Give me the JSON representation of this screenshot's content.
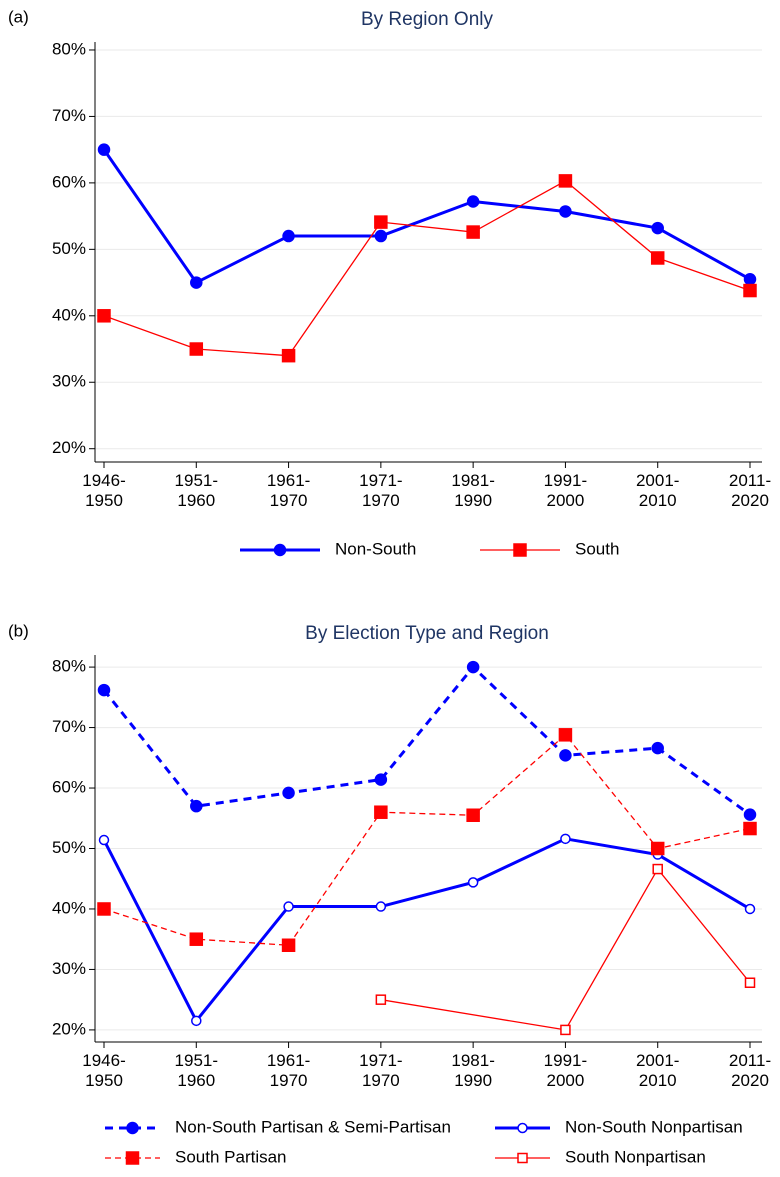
{
  "chart_data": [
    {
      "type": "line",
      "panel_label": "(a)",
      "title": "By Region Only",
      "categories": [
        "1946-\n1950",
        "1951-\n1960",
        "1961-\n1970",
        "1971-\n1970",
        "1981-\n1990",
        "1991-\n2000",
        "2001-\n2010",
        "2011-\n2020"
      ],
      "series": [
        {
          "name": "Non-South",
          "color": "#0000ff",
          "width": 3,
          "dash": false,
          "marker": "circle",
          "filled": true,
          "values": [
            65,
            45,
            52,
            52,
            57.2,
            55.7,
            53.2,
            45.5
          ]
        },
        {
          "name": "South",
          "color": "#ff0000",
          "width": 1.3,
          "dash": false,
          "marker": "square",
          "filled": true,
          "values": [
            40,
            35,
            34,
            54.1,
            52.6,
            60.3,
            48.7,
            43.8
          ]
        }
      ],
      "ylim": [
        18,
        81.2
      ],
      "yticks": [
        {
          "value": 20,
          "label": "20%"
        },
        {
          "value": 30,
          "label": "30%"
        },
        {
          "value": 40,
          "label": "40%"
        },
        {
          "value": 50,
          "label": "50%"
        },
        {
          "value": 60,
          "label": "60%"
        },
        {
          "value": 70,
          "label": "70%"
        },
        {
          "value": 80,
          "label": "80%"
        }
      ],
      "grid": true,
      "legend": "bottom"
    },
    {
      "type": "line",
      "panel_label": "(b)",
      "title": "By Election Type and Region",
      "categories": [
        "1946-\n1950",
        "1951-\n1960",
        "1961-\n1970",
        "1971-\n1970",
        "1981-\n1990",
        "1991-\n2000",
        "2001-\n2010",
        "2011-\n2020"
      ],
      "series": [
        {
          "name": "Non-South Partisan & Semi-Partisan",
          "color": "#0000ff",
          "width": 3,
          "dash": true,
          "marker": "circle",
          "filled": true,
          "values": [
            76.2,
            57,
            59.2,
            61.4,
            80,
            65.4,
            66.6,
            55.6
          ]
        },
        {
          "name": "Non-South Nonpartisan",
          "color": "#0000ff",
          "width": 3,
          "dash": false,
          "marker": "circle",
          "filled": false,
          "values": [
            51.4,
            21.5,
            40.4,
            40.4,
            44.4,
            51.6,
            49,
            40
          ]
        },
        {
          "name": "South Partisan",
          "color": "#ff0000",
          "width": 1.3,
          "dash": true,
          "marker": "square",
          "filled": true,
          "values": [
            40,
            35,
            34,
            56,
            55.5,
            68.8,
            50,
            53.3
          ]
        },
        {
          "name": "South Nonpartisan",
          "color": "#ff0000",
          "width": 1.3,
          "dash": false,
          "marker": "square",
          "filled": false,
          "connect_gaps": true,
          "values": [
            null,
            null,
            null,
            25,
            null,
            20,
            46.6,
            27.8
          ]
        }
      ],
      "ylim": [
        18,
        82
      ],
      "yticks": [
        {
          "value": 20,
          "label": "20%"
        },
        {
          "value": 30,
          "label": "30%"
        },
        {
          "value": 40,
          "label": "40%"
        },
        {
          "value": 50,
          "label": "50%"
        },
        {
          "value": 60,
          "label": "60%"
        },
        {
          "value": 70,
          "label": "70%"
        },
        {
          "value": 80,
          "label": "80%"
        }
      ],
      "grid": true,
      "legend": "bottom"
    }
  ]
}
